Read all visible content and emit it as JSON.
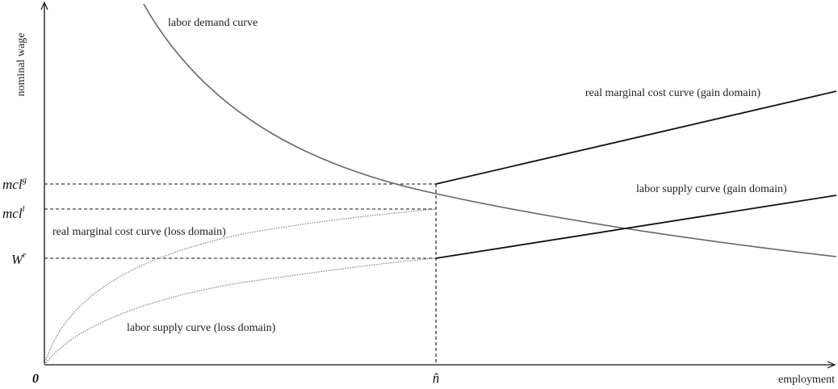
{
  "axes": {
    "y_label": "nominal wage",
    "x_label": "employment",
    "origin_label": "0"
  },
  "ticks": {
    "y": [
      {
        "base": "mcl",
        "sup": "g"
      },
      {
        "base": "mcl",
        "sup": "l"
      },
      {
        "base": "W",
        "sup": "r"
      }
    ],
    "x": [
      {
        "label": "n̂"
      }
    ]
  },
  "curves": {
    "labor_demand": "labor demand curve",
    "rmc_gain": "real marginal cost curve (gain domain)",
    "rmc_loss": "real marginal cost curve (loss domain)",
    "supply_gain": "labor supply curve (gain domain)",
    "supply_loss": "labor supply curve (loss domain)"
  },
  "colors": {
    "demand": "#666666",
    "gain_lines": "#111111",
    "loss_lines": "#888888",
    "guides": "#111111"
  }
}
